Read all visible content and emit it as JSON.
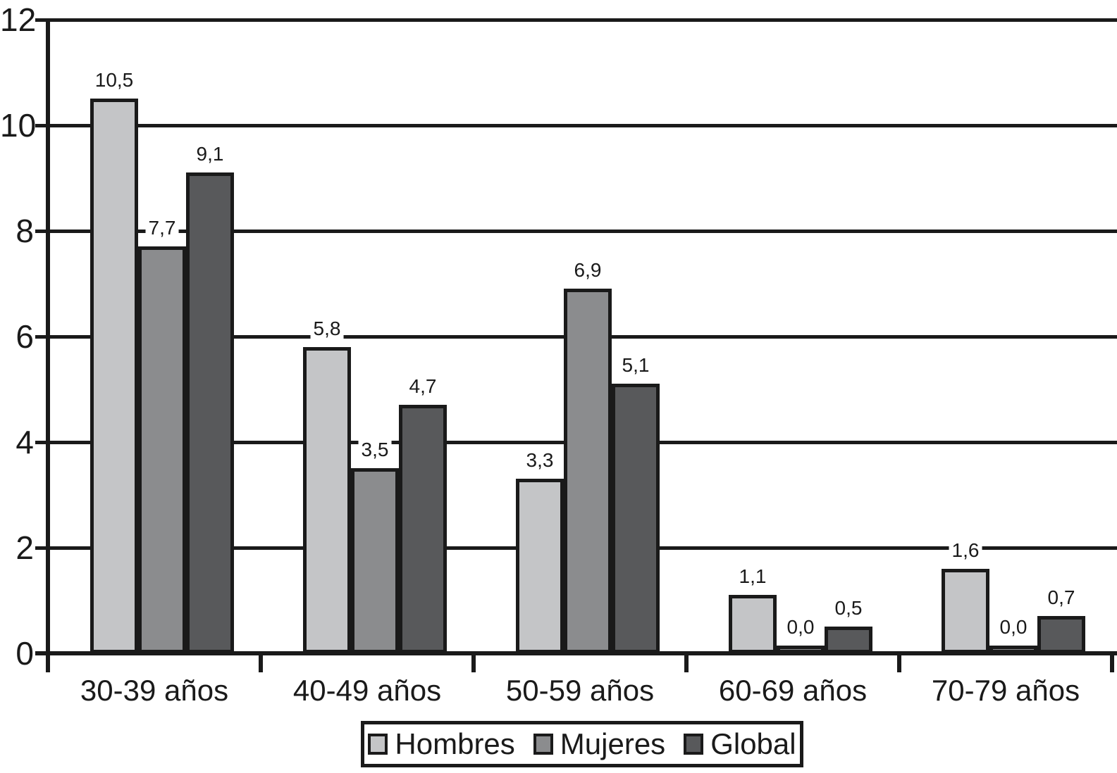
{
  "chart_data": {
    "type": "bar",
    "title": "",
    "categories": [
      "30-39 años",
      "40-49 años",
      "50-59 años",
      "60-69 años",
      "70-79 años"
    ],
    "series": [
      {
        "name": "Hombres",
        "color": "#c4c5c7",
        "values": [
          10.5,
          5.8,
          3.3,
          1.1,
          1.6
        ],
        "labels": [
          "10,5",
          "5,8",
          "3,3",
          "1,1",
          "1,6"
        ]
      },
      {
        "name": "Mujeres",
        "color": "#8b8c8e",
        "values": [
          7.7,
          3.5,
          6.9,
          0.0,
          0.0
        ],
        "labels": [
          "7,7",
          "3,5",
          "6,9",
          "0,0",
          "0,0"
        ]
      },
      {
        "name": "Global",
        "color": "#58595b",
        "values": [
          9.1,
          4.7,
          5.1,
          0.5,
          0.7
        ],
        "labels": [
          "9,1",
          "4,7",
          "5,1",
          "0,5",
          "0,7"
        ]
      }
    ],
    "xlabel": "",
    "ylabel": "",
    "ylim": [
      0,
      12
    ],
    "yticks": [
      0,
      2,
      4,
      6,
      8,
      10,
      12
    ],
    "ytick_labels": [
      "0",
      "2",
      "4",
      "6",
      "8",
      "10",
      "12"
    ],
    "grid": true,
    "decimal_separator": ",",
    "legend_position": "bottom"
  },
  "colors": {
    "line": "#1a1a1a",
    "text": "#1a1a1a",
    "background": "#ffffff",
    "value_label_background": "#ffffff"
  }
}
